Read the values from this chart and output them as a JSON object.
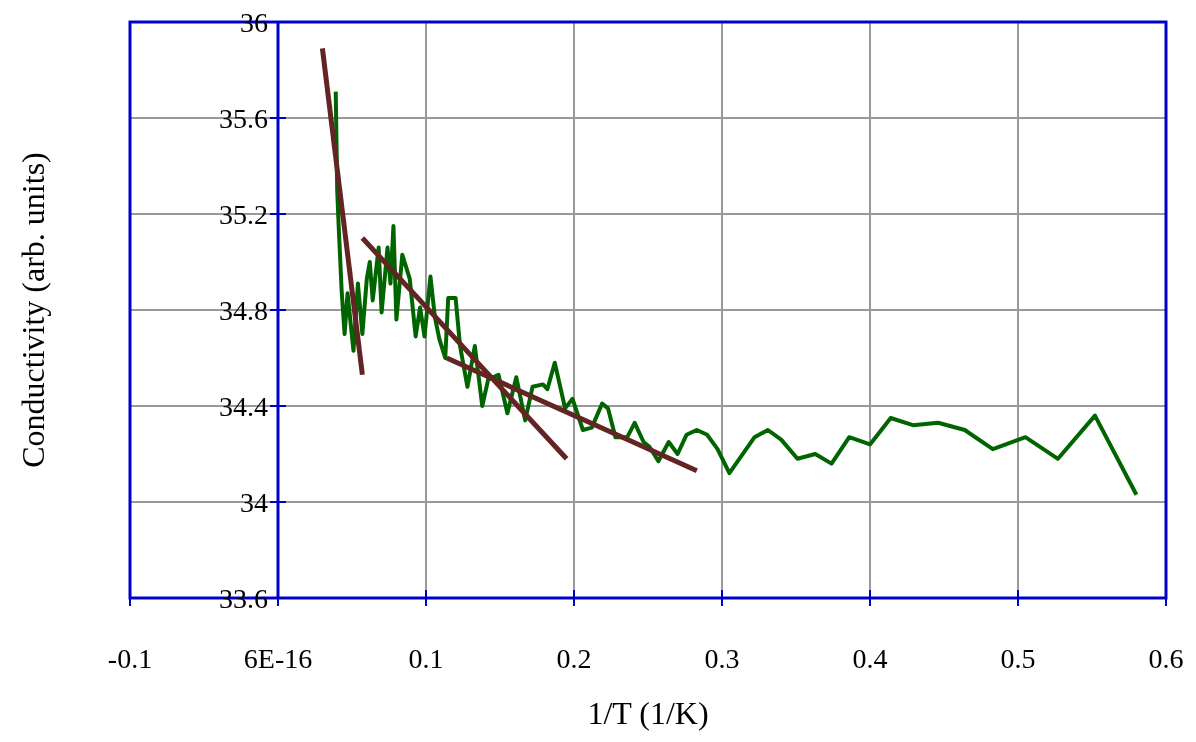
{
  "chart_data": {
    "type": "line",
    "xlabel": "1/T (1/K)",
    "ylabel": "Conductivity (arb. units)",
    "xlim": [
      -0.1,
      0.6
    ],
    "xticks": [
      -0.1,
      {
        "value": 0,
        "label": "6E-16"
      },
      0.1,
      0.2,
      0.3,
      0.4,
      0.5,
      0.6
    ],
    "ylim": [
      33.6,
      36
    ],
    "yticks": [
      33.6,
      34,
      34.4,
      34.8,
      35.2,
      35.6,
      36
    ],
    "grid": true,
    "marker": "none",
    "line_style": "solid",
    "series": [
      {
        "color": "#006400",
        "x": [
          0.039,
          0.04,
          0.041,
          0.043,
          0.045,
          0.047,
          0.051,
          0.054,
          0.057,
          0.06,
          0.062,
          0.064,
          0.068,
          0.07,
          0.074,
          0.076,
          0.078,
          0.08,
          0.084,
          0.087,
          0.089,
          0.093,
          0.096,
          0.099,
          0.103,
          0.106,
          0.109,
          0.113,
          0.115,
          0.118,
          0.12,
          0.123,
          0.128,
          0.133,
          0.138,
          0.142,
          0.149,
          0.155,
          0.161,
          0.167,
          0.172,
          0.179,
          0.182,
          0.187,
          0.194,
          0.199,
          0.206,
          0.212,
          0.219,
          0.223,
          0.228,
          0.236,
          0.241,
          0.247,
          0.251,
          0.257,
          0.264,
          0.27,
          0.276,
          0.283,
          0.29,
          0.297,
          0.305,
          0.322,
          0.331,
          0.34,
          0.351,
          0.363,
          0.374,
          0.386,
          0.4,
          0.414,
          0.429,
          0.446,
          0.464,
          0.483,
          0.505,
          0.527,
          0.552,
          0.58
        ],
        "values": [
          35.71,
          35.3,
          35.15,
          34.88,
          34.7,
          34.87,
          34.63,
          34.91,
          34.7,
          34.93,
          35.0,
          34.84,
          35.06,
          34.79,
          35.06,
          34.91,
          35.15,
          34.76,
          35.03,
          34.97,
          34.93,
          34.69,
          34.81,
          34.69,
          34.94,
          34.77,
          34.68,
          34.6,
          34.85,
          34.85,
          34.85,
          34.65,
          34.48,
          34.65,
          34.4,
          34.51,
          34.53,
          34.37,
          34.52,
          34.34,
          34.48,
          34.49,
          34.47,
          34.58,
          34.39,
          34.43,
          34.3,
          34.31,
          34.41,
          34.39,
          34.27,
          34.27,
          34.33,
          34.25,
          34.23,
          34.17,
          34.25,
          34.2,
          34.28,
          34.3,
          34.28,
          34.22,
          34.12,
          34.27,
          34.3,
          34.26,
          34.18,
          34.2,
          34.16,
          34.27,
          34.24,
          34.35,
          34.32,
          34.33,
          34.3,
          34.22,
          34.27,
          34.18,
          34.36,
          34.03
        ]
      },
      {
        "color": "#632523",
        "x": [
          0.03,
          0.057
        ],
        "values": [
          35.89,
          34.53
        ]
      },
      {
        "color": "#632523",
        "x": [
          0.057,
          0.195
        ],
        "values": [
          35.1,
          34.18
        ]
      },
      {
        "color": "#632523",
        "x": [
          0.114,
          0.283
        ],
        "values": [
          34.6,
          34.13
        ]
      }
    ]
  }
}
